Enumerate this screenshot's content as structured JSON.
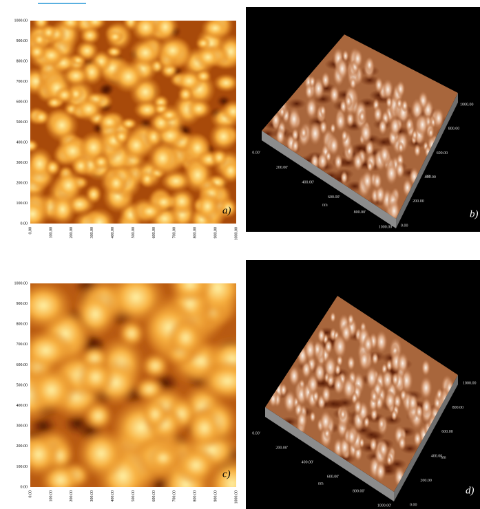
{
  "panels": [
    {
      "label": "a)",
      "y_ticks": [
        "0.00",
        "100.00",
        "200.00",
        "300.00",
        "400.00",
        "500.00",
        "600.00",
        "700.00",
        "800.00",
        "900.00",
        "1000.00"
      ],
      "x_ticks": [
        "0.00",
        "100.00",
        "200.00",
        "300.00",
        "400.00",
        "500.00",
        "600.00",
        "700.00",
        "800.00",
        "900.00",
        "1000.00"
      ]
    },
    {
      "label": "b)",
      "front_ticks": [
        "0.00'",
        "200.00'",
        "400.00'",
        "600.00'",
        "800.00'",
        "1000.00'"
      ],
      "side_ticks": [
        "1000.00",
        "800.00",
        "600.00",
        "400.00",
        "200.00",
        "0.00"
      ],
      "front_unit": "nm",
      "side_unit": "nm"
    },
    {
      "label": "c)",
      "y_ticks": [
        "0.00",
        "100.00",
        "200.00",
        "300.00",
        "400.00",
        "500.00",
        "600.00",
        "700.00",
        "800.00",
        "900.00",
        "1000.00"
      ],
      "x_ticks": [
        "0.00",
        "100.00",
        "200.00",
        "300.00",
        "400.00",
        "500.00",
        "600.00",
        "700.00",
        "800.00",
        "900.00",
        "1000.00"
      ]
    },
    {
      "label": "d)",
      "front_ticks": [
        "0.00'",
        "200.00'",
        "400.00'",
        "600.00'",
        "800.00'",
        "1000.00'"
      ],
      "side_ticks": [
        "1000.00",
        "800.00",
        "600.00",
        "400.00",
        "200.00",
        "0.00"
      ],
      "front_unit": "nm",
      "side_unit": "nm"
    }
  ]
}
